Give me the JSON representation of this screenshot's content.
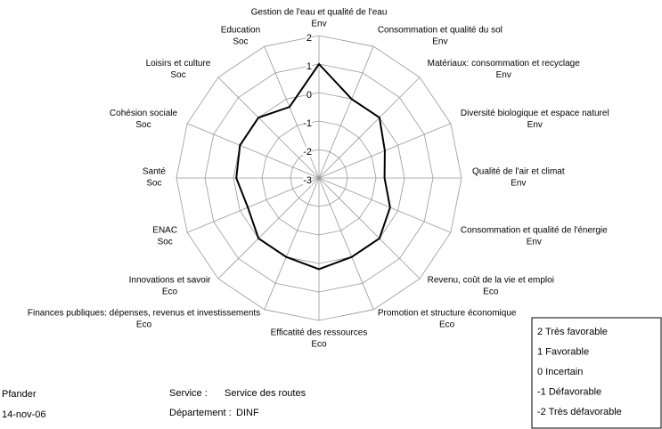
{
  "chart_data": {
    "type": "radar",
    "categories": [
      {
        "name": "Gestion de l'eau et qualité de l'eau",
        "group": "Env"
      },
      {
        "name": "Consommation et qualité du sol",
        "group": "Env"
      },
      {
        "name": "Matériaux: consommation et recyclage",
        "group": "Env"
      },
      {
        "name": "Diversité biologique et espace naturel",
        "group": "Env"
      },
      {
        "name": "Qualité de l'air et climat",
        "group": "Env"
      },
      {
        "name": "Consommation et qualité de l'énergie",
        "group": "Env"
      },
      {
        "name": "Revenu, coût de la vie et emploi",
        "group": "Eco"
      },
      {
        "name": "Promotion et structure économique",
        "group": "Eco"
      },
      {
        "name": "Efficatité des ressources",
        "group": "Eco"
      },
      {
        "name": "Finances publiques: dépenses, revenus et investissements",
        "group": "Eco"
      },
      {
        "name": "Innovations et savoir",
        "group": "Eco"
      },
      {
        "name": "ENAC",
        "group": "Soc"
      },
      {
        "name": "Santé",
        "group": "Soc"
      },
      {
        "name": "Cohésion sociale",
        "group": "Soc"
      },
      {
        "name": "Loisirs et culture",
        "group": "Soc"
      },
      {
        "name": "Education",
        "group": "Soc"
      }
    ],
    "values": [
      1,
      0,
      0,
      -0.5,
      -0.7,
      -0.3,
      0,
      0,
      0.2,
      0,
      0,
      -0.3,
      -0.1,
      0,
      0,
      -0.3
    ],
    "color": "#000000",
    "rlim": [
      -3,
      2
    ],
    "rticks": [
      -3,
      -2,
      -1,
      0,
      1,
      2
    ],
    "grid": true,
    "legend": [
      "2 Très favorable",
      "1 Favorable",
      "0 Incertain",
      "-1 Défavorable",
      "-2 Très défavorable"
    ]
  },
  "footer": {
    "author": "Pfander",
    "date": "14-nov-06",
    "service_label": "Service :",
    "service": "Service des routes",
    "department_label": "Département :",
    "department": "DINF"
  }
}
